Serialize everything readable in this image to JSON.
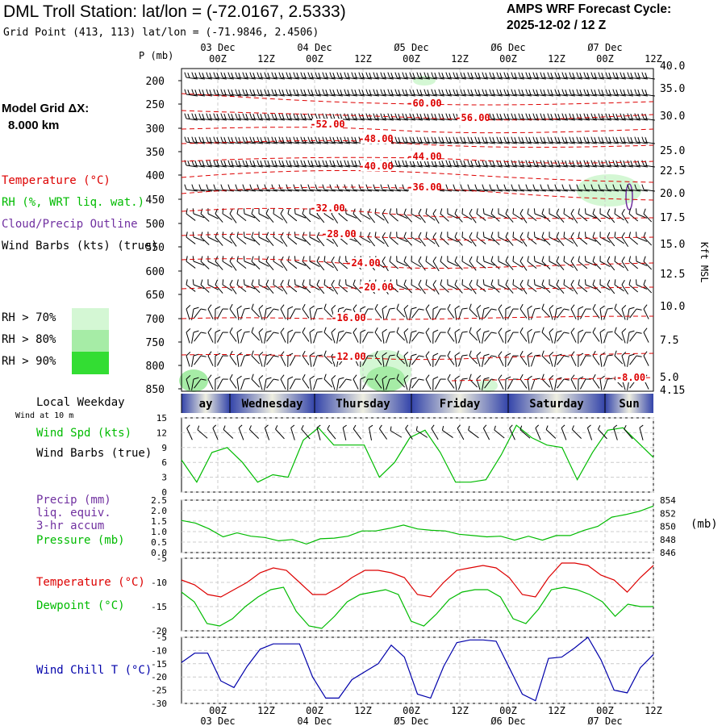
{
  "header": {
    "title": "DML Troll Station:  lat/lon = (-72.0167, 2.5333)",
    "grid_point": "Grid Point (413, 113) lat/lon = (-71.9846, 2.4506)",
    "cycle_label": "AMPS WRF Forecast Cycle:",
    "cycle_value": "2025-12-02 / 12  Z"
  },
  "legend": {
    "model_grid_label": "Model Grid ΔX:",
    "model_grid_value": "8.000 km",
    "temperature": "Temperature (°C)",
    "rh": "RH (%, WRT liq. wat.)",
    "cloud": "Cloud/Precip Outline",
    "wind_barbs": "Wind Barbs (kts) (true)",
    "rh70": "RH > 70%",
    "rh80": "RH > 80%",
    "rh90": "RH > 90%",
    "local_weekday": "Local Weekday",
    "wind_at_10m": "Wind at 10 m",
    "wind_spd": "Wind Spd (kts)",
    "wind_barbs2": "Wind Barbs (true)",
    "precip": "Precip (mm)",
    "liq_equiv": "liq. equiv.",
    "accum": "3-hr accum",
    "pressure": "Pressure (mb)",
    "mb_unit": "(mb)",
    "temperature2": "Temperature (°C)",
    "dewpoint": "Dewpoint (°C)",
    "wind_chill": "Wind Chill T (°C)",
    "p_axis_label": "P (mb)",
    "kft_label": "Kft MSL"
  },
  "colors": {
    "temperature": "#dd0000",
    "green": "#00bb00",
    "purple": "#7030a0",
    "blue": "#0000aa",
    "rh70": "#d4f7d4",
    "rh80": "#a6eca6",
    "rh90": "#33dd33"
  },
  "time_axis": {
    "ticks": [
      "00Z",
      "12Z",
      "00Z",
      "12Z",
      "00Z",
      "12Z",
      "00Z",
      "12Z",
      "00Z",
      "12Z"
    ],
    "days": [
      "03 Dec",
      "04 Dec",
      "Ø5 Dec",
      "Ø6 Dec",
      "Ø7 Dec"
    ],
    "weekdays": [
      "ay",
      "Wednesday",
      "Thursday",
      "Friday",
      "Saturday",
      "Sun"
    ]
  },
  "chart_data": [
    {
      "type": "heatmap",
      "name": "cross_section",
      "pressure_levels_mb": [
        "200",
        "250",
        "300",
        "350",
        "400",
        "450",
        "500",
        "550",
        "600",
        "650",
        "700",
        "750",
        "800",
        "850"
      ],
      "height_kft": [
        "40.0",
        "35.0",
        "30.0",
        "25.0",
        "22.5",
        "20.0",
        "17.5",
        "15.0",
        "12.5",
        "10.0",
        "7.5",
        "5.0",
        "4.15"
      ],
      "temperature_contours": [
        {
          "label": "-60.00"
        },
        {
          "label": "-56.00"
        },
        {
          "label": "-52.00"
        },
        {
          "label": "-48.00"
        },
        {
          "label": "-44.00"
        },
        {
          "label": "-40.00"
        },
        {
          "label": "-36.00"
        },
        {
          "label": "-32.00"
        },
        {
          "label": "-28.00"
        },
        {
          "label": "-24.00"
        },
        {
          "label": "-20.00"
        },
        {
          "label": "-16.00"
        },
        {
          "label": "-12.00"
        },
        {
          "label": "-8.00"
        }
      ]
    },
    {
      "type": "line",
      "name": "wind_speed",
      "ylim": [
        0,
        15
      ],
      "yticks": [
        "15",
        "12",
        "9",
        "6",
        "3",
        "0"
      ],
      "series": [
        {
          "name": "Wind Spd (kts)",
          "values": [
            6.5,
            2,
            8,
            9,
            6,
            2,
            3.5,
            3,
            10.5,
            13,
            9.5,
            9.5,
            9.5,
            3,
            6,
            11,
            12.5,
            8,
            2,
            2,
            2.5,
            7.5,
            13.5,
            11,
            9.5,
            9,
            2.5,
            8,
            12.5,
            13,
            10,
            7
          ]
        }
      ]
    },
    {
      "type": "line",
      "name": "precip_pressure",
      "ylim_precip": [
        0,
        2.5
      ],
      "yticks_precip": [
        "2.5",
        "2.0",
        "1.5",
        "1.0",
        "0.5",
        "0.0"
      ],
      "yticks_pressure": [
        "854",
        "852",
        "850",
        "848",
        "846"
      ],
      "series": [
        {
          "name": "Pressure (mb)",
          "values": [
            850.9,
            850.5,
            849.6,
            848.4,
            849,
            848.5,
            848.3,
            847.8,
            848,
            847.3,
            848.1,
            848.2,
            848.5,
            849.3,
            849.3,
            849.7,
            850.2,
            849.6,
            849.4,
            849.3,
            848.8,
            848.6,
            848.4,
            848.5,
            847.9,
            848.5,
            847.9,
            848.6,
            848.6,
            849.4,
            850,
            851.4,
            851.8,
            852.3,
            853.1
          ]
        }
      ]
    },
    {
      "type": "line",
      "name": "temperature_dewpoint",
      "ylim": [
        -20,
        -5
      ],
      "yticks": [
        "-5",
        "-10",
        "-15",
        "-20"
      ],
      "series": [
        {
          "name": "Temperature (°C)",
          "values": [
            -9.5,
            -10.5,
            -12.5,
            -13,
            -11.5,
            -10,
            -8,
            -7,
            -7.5,
            -10,
            -12.5,
            -12.5,
            -11,
            -9,
            -7.5,
            -7.5,
            -8,
            -9,
            -12.5,
            -13,
            -10,
            -7.5,
            -7,
            -6.5,
            -7,
            -9,
            -12.5,
            -13,
            -9,
            -6,
            -6,
            -6.5,
            -8.5,
            -9.5,
            -12,
            -9,
            -6.5
          ]
        },
        {
          "name": "Dewpoint (°C)",
          "values": [
            -12,
            -14,
            -18.5,
            -19,
            -17.5,
            -15,
            -13,
            -11.5,
            -11,
            -16,
            -19,
            -19.5,
            -17,
            -14,
            -12.5,
            -12,
            -11.5,
            -12.5,
            -18,
            -19,
            -16.5,
            -13.5,
            -12,
            -11.5,
            -11.5,
            -13,
            -17.5,
            -18.5,
            -15.5,
            -11.5,
            -11,
            -11.5,
            -12.5,
            -14,
            -17,
            -14.5,
            -15,
            -15
          ]
        }
      ]
    },
    {
      "type": "line",
      "name": "wind_chill",
      "ylim": [
        -30,
        -5
      ],
      "yticks": [
        "-5",
        "-10",
        "-15",
        "-20",
        "-25",
        "-30"
      ],
      "series": [
        {
          "name": "Wind Chill T (°C)",
          "values": [
            -14.5,
            -11,
            -11,
            -21.5,
            -24,
            -16,
            -9.5,
            -7.5,
            -7.5,
            -7.5,
            -20,
            -28,
            -28,
            -21,
            -18,
            -15,
            -8,
            -12.5,
            -26.5,
            -28,
            -16,
            -7,
            -6,
            -6,
            -6.5,
            -16.5,
            -26.5,
            -29,
            -13,
            -12.5,
            -9,
            -5,
            -13.5,
            -25,
            -26,
            -16.5,
            -11.5
          ]
        }
      ]
    }
  ]
}
